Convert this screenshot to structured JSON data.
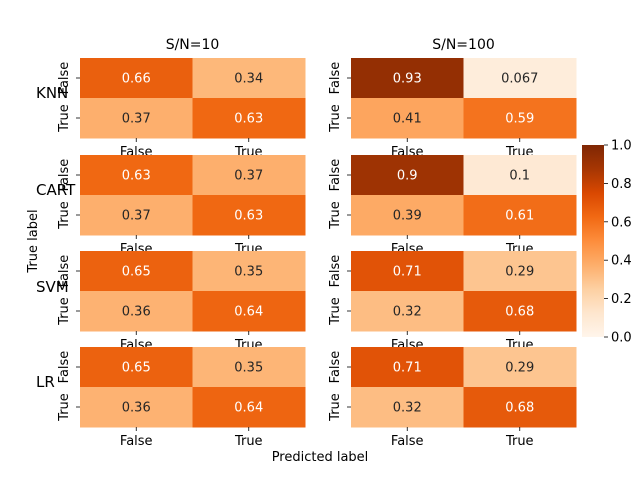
{
  "chart_data": {
    "type": "heatmap",
    "colormap": "Oranges",
    "color_range": [
      0,
      1
    ],
    "colorbar_ticks": [
      "0.0",
      "0.2",
      "0.4",
      "0.6",
      "0.8",
      "1.0"
    ],
    "column_titles": [
      "S/N=10",
      "S/N=100"
    ],
    "row_labels": [
      "KNN",
      "CART",
      "SVM",
      "LR"
    ],
    "predicted_categories": [
      "False",
      "True"
    ],
    "true_categories": [
      "False",
      "True"
    ],
    "xlabel": "Predicted label",
    "ylabel": "True label",
    "matrices": [
      {
        "model": "KNN",
        "sn": "S/N=10",
        "values": [
          [
            0.66,
            0.34
          ],
          [
            0.37,
            0.63
          ]
        ],
        "labels": [
          [
            "0.66",
            "0.34"
          ],
          [
            "0.37",
            "0.63"
          ]
        ]
      },
      {
        "model": "KNN",
        "sn": "S/N=100",
        "values": [
          [
            0.933,
            0.067
          ],
          [
            0.41,
            0.59
          ]
        ],
        "labels": [
          [
            "0.93",
            "0.067"
          ],
          [
            "0.41",
            "0.59"
          ]
        ]
      },
      {
        "model": "CART",
        "sn": "S/N=10",
        "values": [
          [
            0.63,
            0.37
          ],
          [
            0.37,
            0.63
          ]
        ],
        "labels": [
          [
            "0.63",
            "0.37"
          ],
          [
            "0.37",
            "0.63"
          ]
        ]
      },
      {
        "model": "CART",
        "sn": "S/N=100",
        "values": [
          [
            0.9,
            0.1
          ],
          [
            0.39,
            0.61
          ]
        ],
        "labels": [
          [
            "0.9",
            "0.1"
          ],
          [
            "0.39",
            "0.61"
          ]
        ]
      },
      {
        "model": "SVM",
        "sn": "S/N=10",
        "values": [
          [
            0.65,
            0.35
          ],
          [
            0.36,
            0.64
          ]
        ],
        "labels": [
          [
            "0.65",
            "0.35"
          ],
          [
            "0.36",
            "0.64"
          ]
        ]
      },
      {
        "model": "SVM",
        "sn": "S/N=100",
        "values": [
          [
            0.71,
            0.29
          ],
          [
            0.32,
            0.68
          ]
        ],
        "labels": [
          [
            "0.71",
            "0.29"
          ],
          [
            "0.32",
            "0.68"
          ]
        ]
      },
      {
        "model": "LR",
        "sn": "S/N=10",
        "values": [
          [
            0.65,
            0.35
          ],
          [
            0.36,
            0.64
          ]
        ],
        "labels": [
          [
            "0.65",
            "0.35"
          ],
          [
            "0.36",
            "0.64"
          ]
        ]
      },
      {
        "model": "LR",
        "sn": "S/N=100",
        "values": [
          [
            0.71,
            0.29
          ],
          [
            0.32,
            0.68
          ]
        ],
        "labels": [
          [
            "0.71",
            "0.29"
          ],
          [
            "0.32",
            "0.68"
          ]
        ]
      }
    ]
  }
}
